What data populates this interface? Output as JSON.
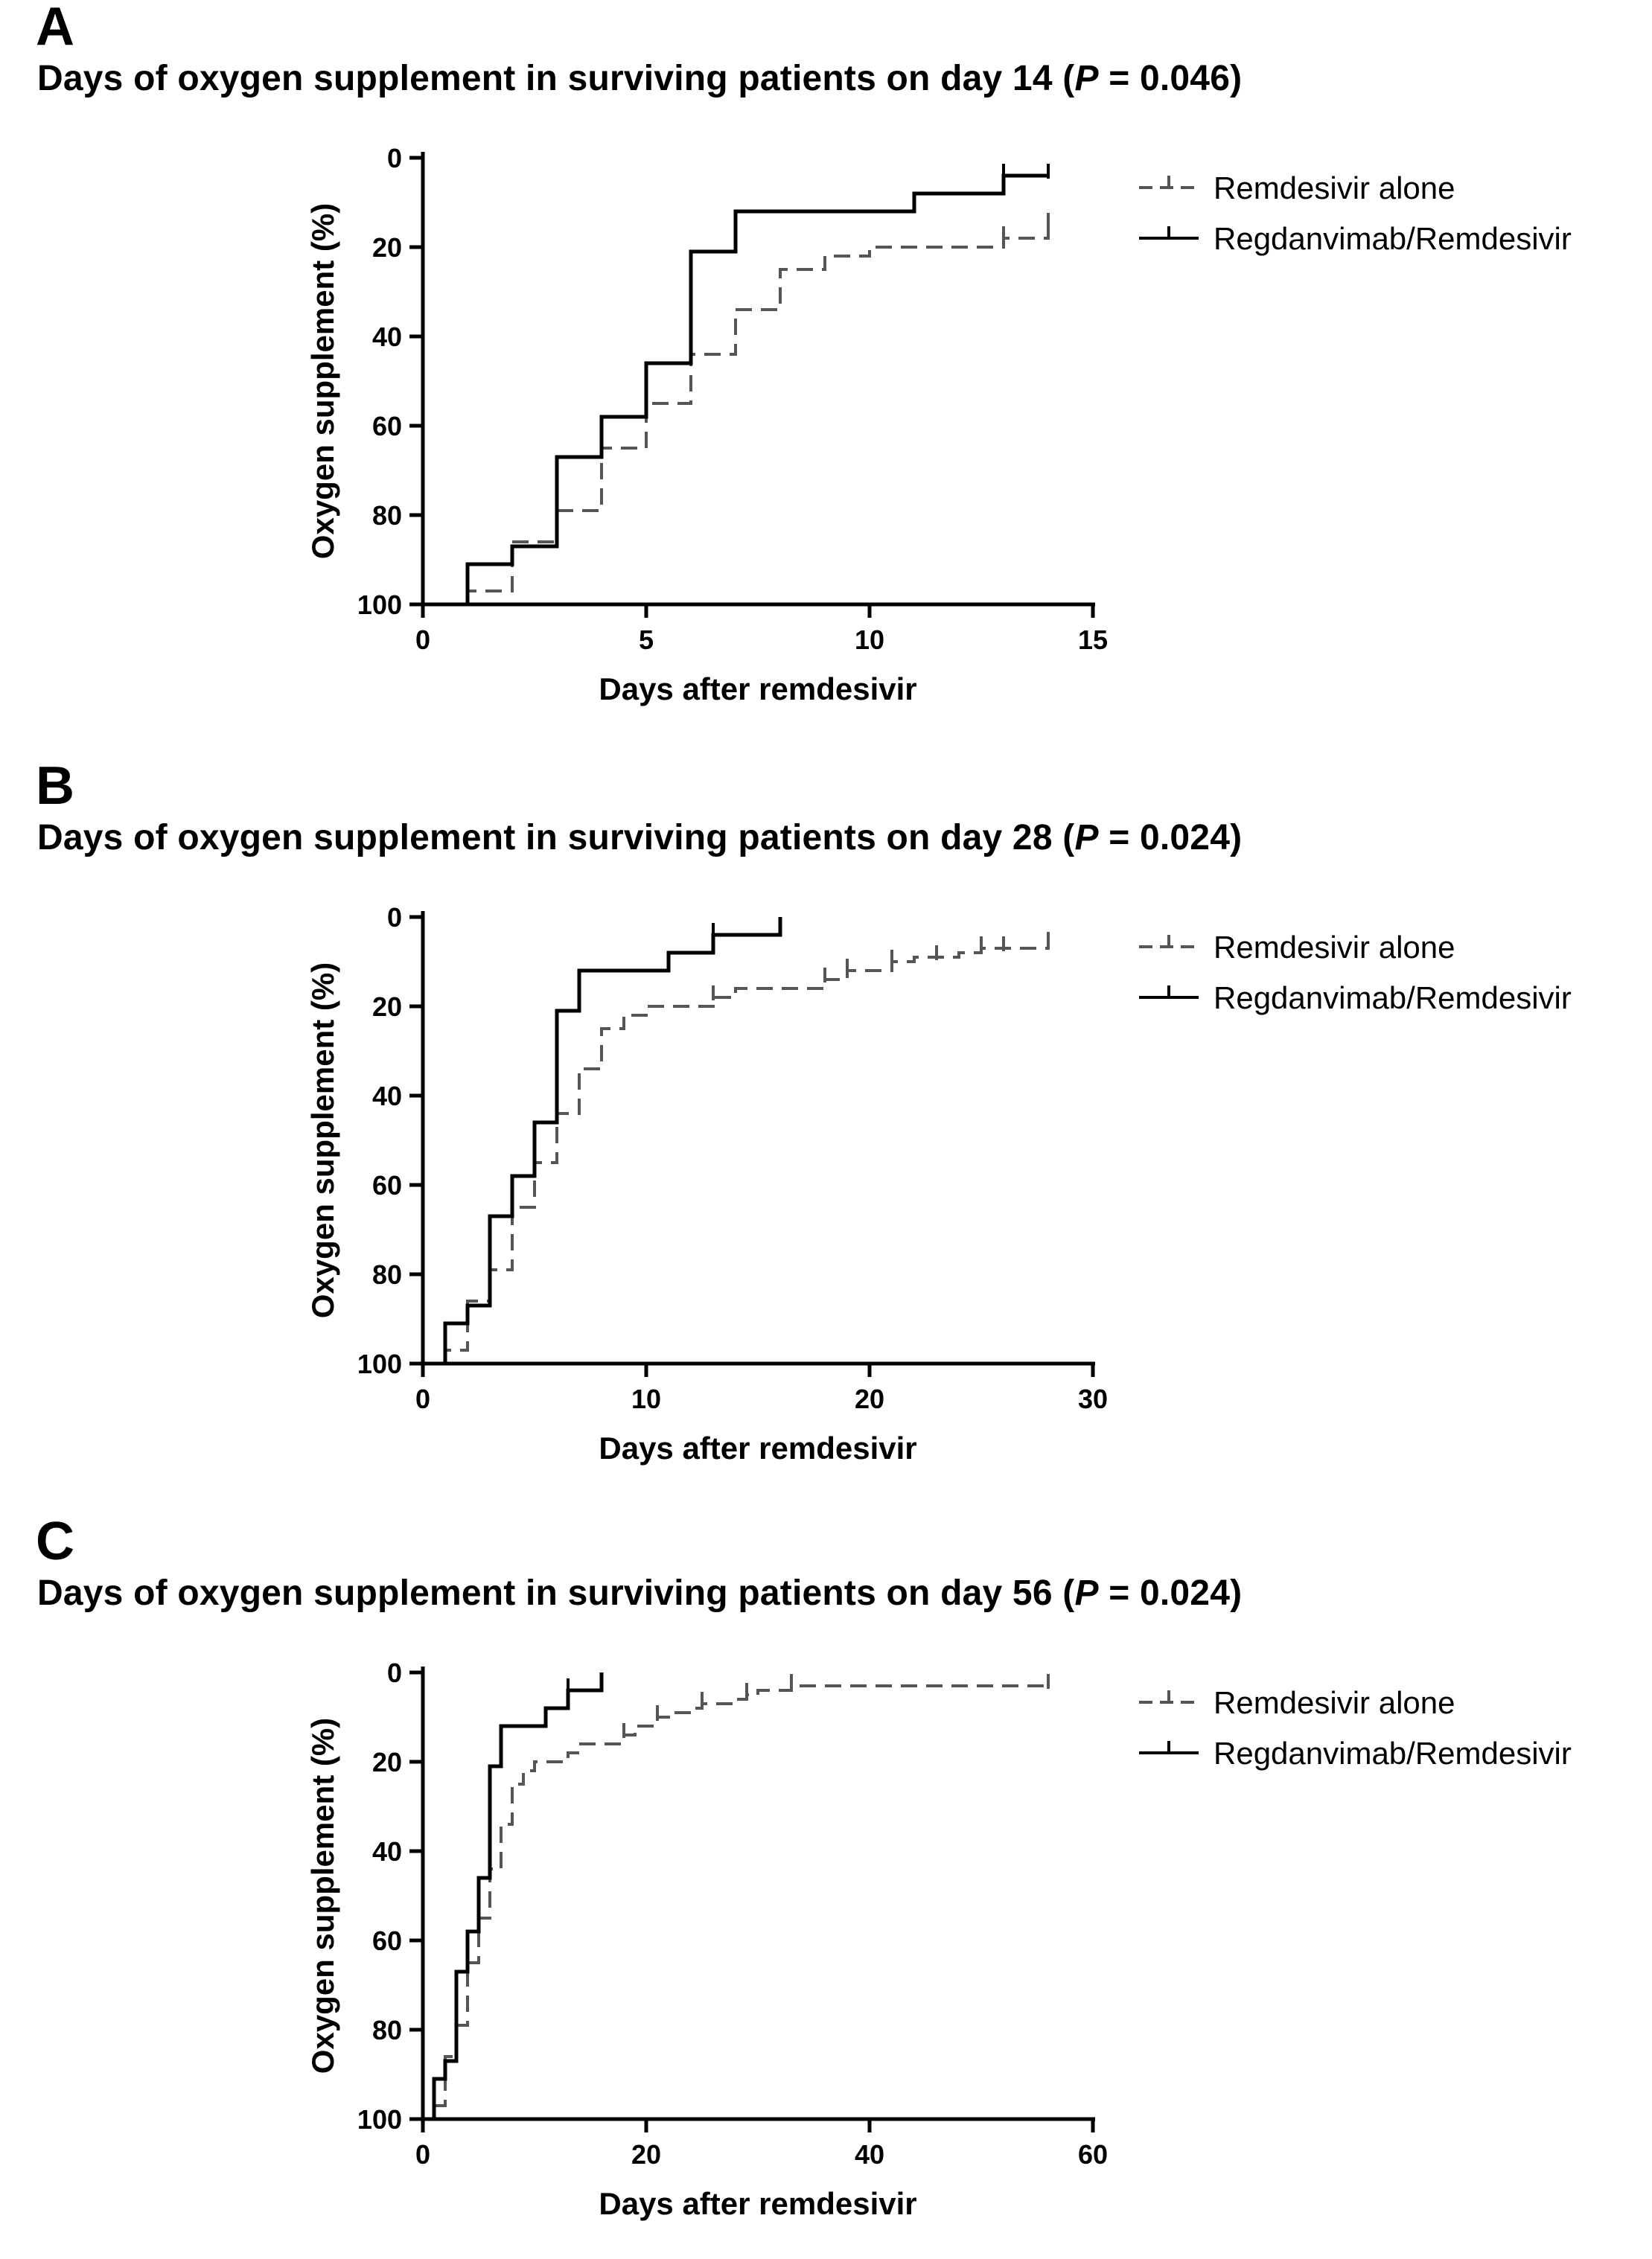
{
  "chart_data": [
    {
      "type": "line",
      "subtype": "kaplan-meier-step",
      "panel_label": "A",
      "title_text": "Days of oxygen supplement in surviving patients on day 14 (",
      "title_p": "P",
      "title_p_value": " = 0.046)",
      "xlabel": "Days after remdesivir",
      "ylabel": "Oxygen supplement (%)",
      "xlim": [
        0,
        15
      ],
      "ylim": [
        100,
        0
      ],
      "xticks": [
        "0",
        "5",
        "10",
        "15"
      ],
      "xtick_values": [
        0,
        5,
        10,
        15
      ],
      "yticks": [
        "0",
        "20",
        "40",
        "60",
        "80",
        "100"
      ],
      "ytick_values": [
        0,
        20,
        40,
        60,
        80,
        100
      ],
      "legend": [
        "Remdesivir alone",
        "Regdanvimab/Remdesivir"
      ],
      "series": [
        {
          "name": "Remdesivir alone",
          "style": "dashed",
          "x": [
            0,
            1,
            2,
            3,
            4,
            5,
            6,
            7,
            8,
            9,
            10,
            13,
            14
          ],
          "y": [
            100,
            97,
            86,
            79,
            65,
            55,
            44,
            34,
            25,
            22,
            20,
            18,
            15
          ],
          "censored": [
            [
              13,
              18
            ],
            [
              14,
              15
            ]
          ]
        },
        {
          "name": "Regdanvimab/Remdesivir",
          "style": "solid",
          "x": [
            0,
            1,
            2,
            3,
            4,
            5,
            6,
            7,
            11,
            13,
            14
          ],
          "y": [
            100,
            91,
            87,
            67,
            58,
            46,
            21,
            12,
            8,
            4,
            4
          ],
          "censored": [
            [
              13,
              4
            ],
            [
              14,
              4
            ]
          ]
        }
      ]
    },
    {
      "type": "line",
      "subtype": "kaplan-meier-step",
      "panel_label": "B",
      "title_text": "Days of oxygen supplement in surviving patients on day 28 (",
      "title_p": "P",
      "title_p_value": " = 0.024)",
      "xlabel": "Days after remdesivir",
      "ylabel": "Oxygen supplement (%)",
      "xlim": [
        0,
        30
      ],
      "ylim": [
        100,
        0
      ],
      "xticks": [
        "0",
        "10",
        "20",
        "30"
      ],
      "xtick_values": [
        0,
        10,
        20,
        30
      ],
      "yticks": [
        "0",
        "20",
        "40",
        "60",
        "80",
        "100"
      ],
      "ytick_values": [
        0,
        20,
        40,
        60,
        80,
        100
      ],
      "legend": [
        "Remdesivir alone",
        "Regdanvimab/Remdesivir"
      ],
      "series": [
        {
          "name": "Remdesivir alone",
          "style": "dashed",
          "x": [
            0,
            1,
            2,
            3,
            4,
            5,
            6,
            7,
            8,
            9,
            10,
            13,
            14,
            18,
            19,
            20,
            21,
            22,
            24,
            25,
            28
          ],
          "y": [
            100,
            97,
            86,
            79,
            65,
            55,
            44,
            34,
            25,
            22,
            20,
            18,
            16,
            14,
            12,
            12,
            10,
            9,
            8,
            7,
            6
          ],
          "censored": [
            [
              13,
              18
            ],
            [
              18,
              14
            ],
            [
              19,
              12
            ],
            [
              21,
              10
            ],
            [
              23,
              9
            ],
            [
              25,
              7
            ],
            [
              26,
              7
            ],
            [
              28,
              6
            ]
          ]
        },
        {
          "name": "Regdanvimab/Remdesivir",
          "style": "solid",
          "x": [
            0,
            1,
            2,
            3,
            4,
            5,
            6,
            7,
            11,
            13,
            16
          ],
          "y": [
            100,
            91,
            87,
            67,
            58,
            46,
            21,
            12,
            8,
            4,
            0
          ],
          "censored": [
            [
              13,
              4
            ]
          ]
        }
      ]
    },
    {
      "type": "line",
      "subtype": "kaplan-meier-step",
      "panel_label": "C",
      "title_text": "Days of oxygen supplement in surviving patients on day 56 (",
      "title_p": "P",
      "title_p_value": " = 0.024)",
      "xlabel": "Days after remdesivir",
      "ylabel": "Oxygen supplement (%)",
      "xlim": [
        0,
        60
      ],
      "ylim": [
        100,
        0
      ],
      "xticks": [
        "0",
        "20",
        "40",
        "60"
      ],
      "xtick_values": [
        0,
        20,
        40,
        60
      ],
      "yticks": [
        "0",
        "20",
        "40",
        "60",
        "80",
        "100"
      ],
      "ytick_values": [
        0,
        20,
        40,
        60,
        80,
        100
      ],
      "legend": [
        "Remdesivir alone",
        "Regdanvimab/Remdesivir"
      ],
      "series": [
        {
          "name": "Remdesivir alone",
          "style": "dashed",
          "x": [
            0,
            1,
            2,
            3,
            4,
            5,
            6,
            7,
            8,
            9,
            10,
            13,
            14,
            18,
            19,
            20,
            21,
            22,
            24,
            25,
            28,
            29,
            30,
            33,
            56
          ],
          "y": [
            100,
            97,
            86,
            79,
            65,
            55,
            44,
            34,
            25,
            22,
            20,
            18,
            16,
            14,
            12,
            12,
            10,
            9,
            8,
            7,
            6,
            5,
            4,
            3,
            3
          ],
          "censored": [
            [
              18,
              14
            ],
            [
              21,
              10
            ],
            [
              25,
              7
            ],
            [
              29,
              5
            ],
            [
              33,
              3
            ],
            [
              56,
              3
            ]
          ]
        },
        {
          "name": "Regdanvimab/Remdesivir",
          "style": "solid",
          "x": [
            0,
            1,
            2,
            3,
            4,
            5,
            6,
            7,
            11,
            13,
            16
          ],
          "y": [
            100,
            91,
            87,
            67,
            58,
            46,
            21,
            12,
            8,
            4,
            0
          ],
          "censored": [
            [
              13,
              4
            ]
          ]
        }
      ]
    }
  ]
}
